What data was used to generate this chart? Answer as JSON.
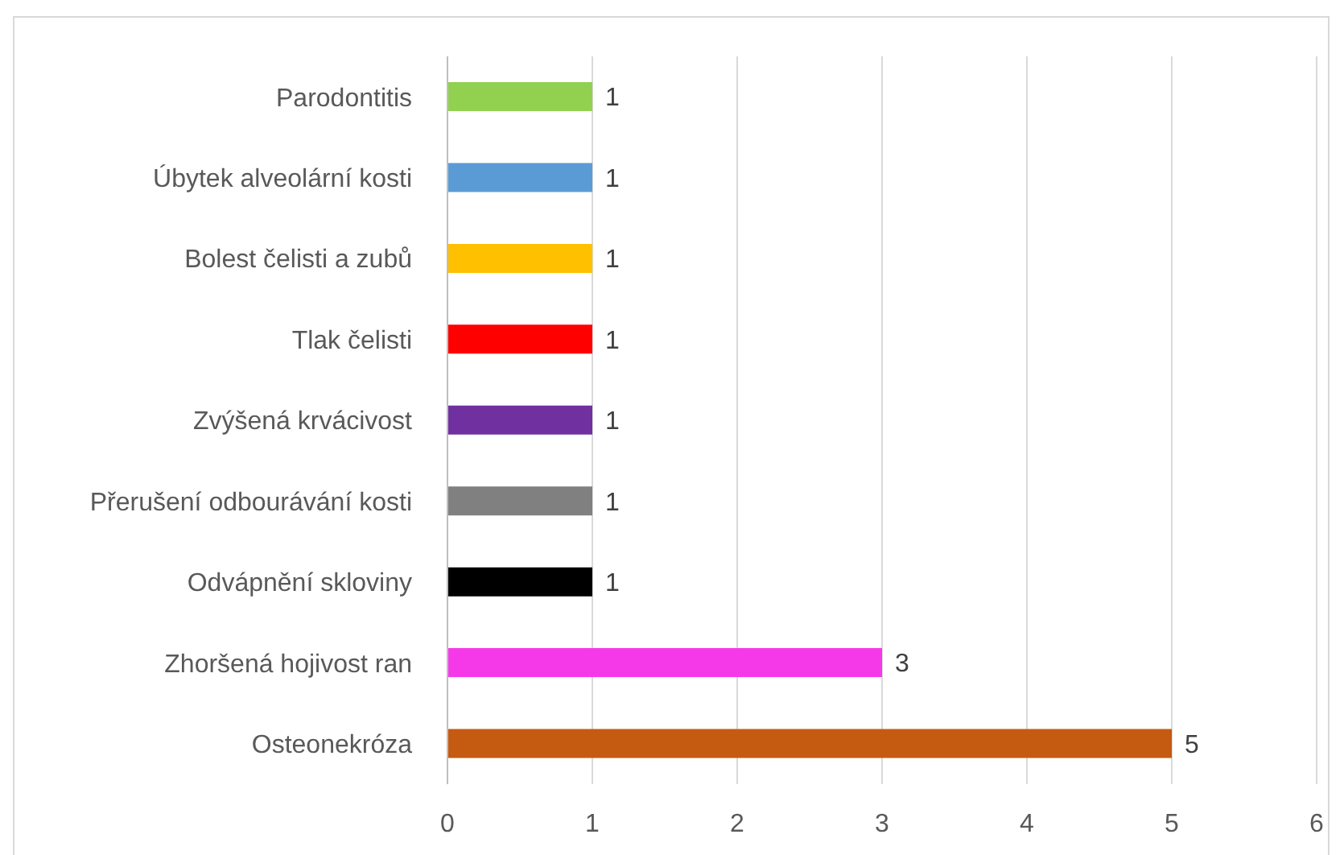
{
  "chart_data": {
    "type": "bar",
    "orientation": "horizontal",
    "categories": [
      "Parodontitis",
      "Úbytek alveolární kosti",
      "Bolest čelisti a zubů",
      "Tlak čelisti",
      "Zvýšená krvácivost",
      "Přerušení odbourávání kosti",
      "Odvápnění skloviny",
      "Zhoršená hojivost ran",
      "Osteonekróza"
    ],
    "values": [
      1,
      1,
      1,
      1,
      1,
      1,
      1,
      3,
      5
    ],
    "colors": [
      "#92d050",
      "#5b9bd5",
      "#ffc000",
      "#ff0000",
      "#7030a0",
      "#808080",
      "#000000",
      "#f539e8",
      "#c55a11"
    ],
    "xlim": [
      0,
      6
    ],
    "xticks": [
      0,
      1,
      2,
      3,
      4,
      5,
      6
    ],
    "grid": "x",
    "data_labels": true
  }
}
